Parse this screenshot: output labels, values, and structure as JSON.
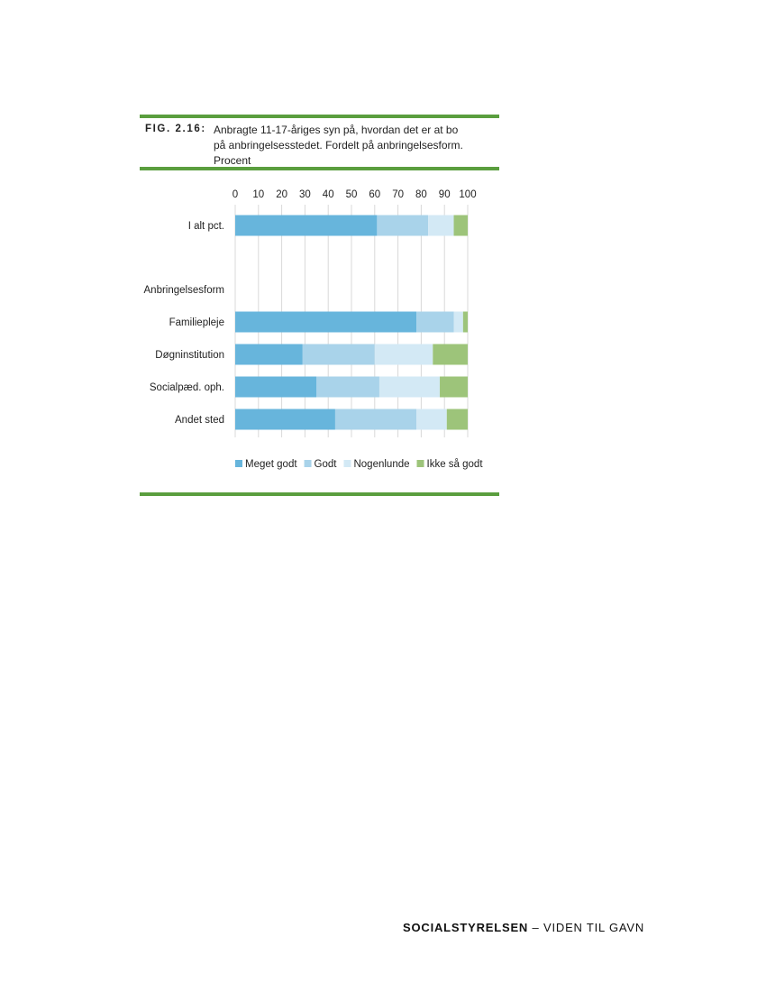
{
  "figure": {
    "label": "FIG. 2.16:",
    "title": "Anbragte 11-17-åriges syn på, hvordan det er at bo\npå anbringelsesstedet. Fordelt på anbringelsesform.\nProcent"
  },
  "footer": {
    "brand": "SOCIALSTYRELSEN",
    "separator": "–",
    "tagline": "VIDEN TIL GAVN"
  },
  "chart_data": {
    "type": "bar",
    "orientation": "horizontal",
    "stacked": true,
    "xlim": [
      0,
      100
    ],
    "xticks": [
      0,
      10,
      20,
      30,
      40,
      50,
      60,
      70,
      80,
      90,
      100
    ],
    "grid": true,
    "legend_position": "bottom",
    "categories": [
      "I alt pct.",
      "Familiepleje",
      "Døgninstitution",
      "Socialpæd. oph.",
      "Andet sted"
    ],
    "group_label": "Anbringelsesform",
    "series": [
      {
        "name": "Meget godt",
        "color": "#67b5dc",
        "values": [
          61,
          78,
          29,
          35,
          43
        ]
      },
      {
        "name": "Godt",
        "color": "#a9d3ea",
        "values": [
          22,
          16,
          31,
          27,
          35
        ]
      },
      {
        "name": "Nogenlunde",
        "color": "#d3e9f5",
        "values": [
          11,
          4,
          25,
          26,
          13
        ]
      },
      {
        "name": "Ikke så godt",
        "color": "#9dc47a",
        "values": [
          6,
          2,
          15,
          12,
          9
        ]
      }
    ]
  }
}
